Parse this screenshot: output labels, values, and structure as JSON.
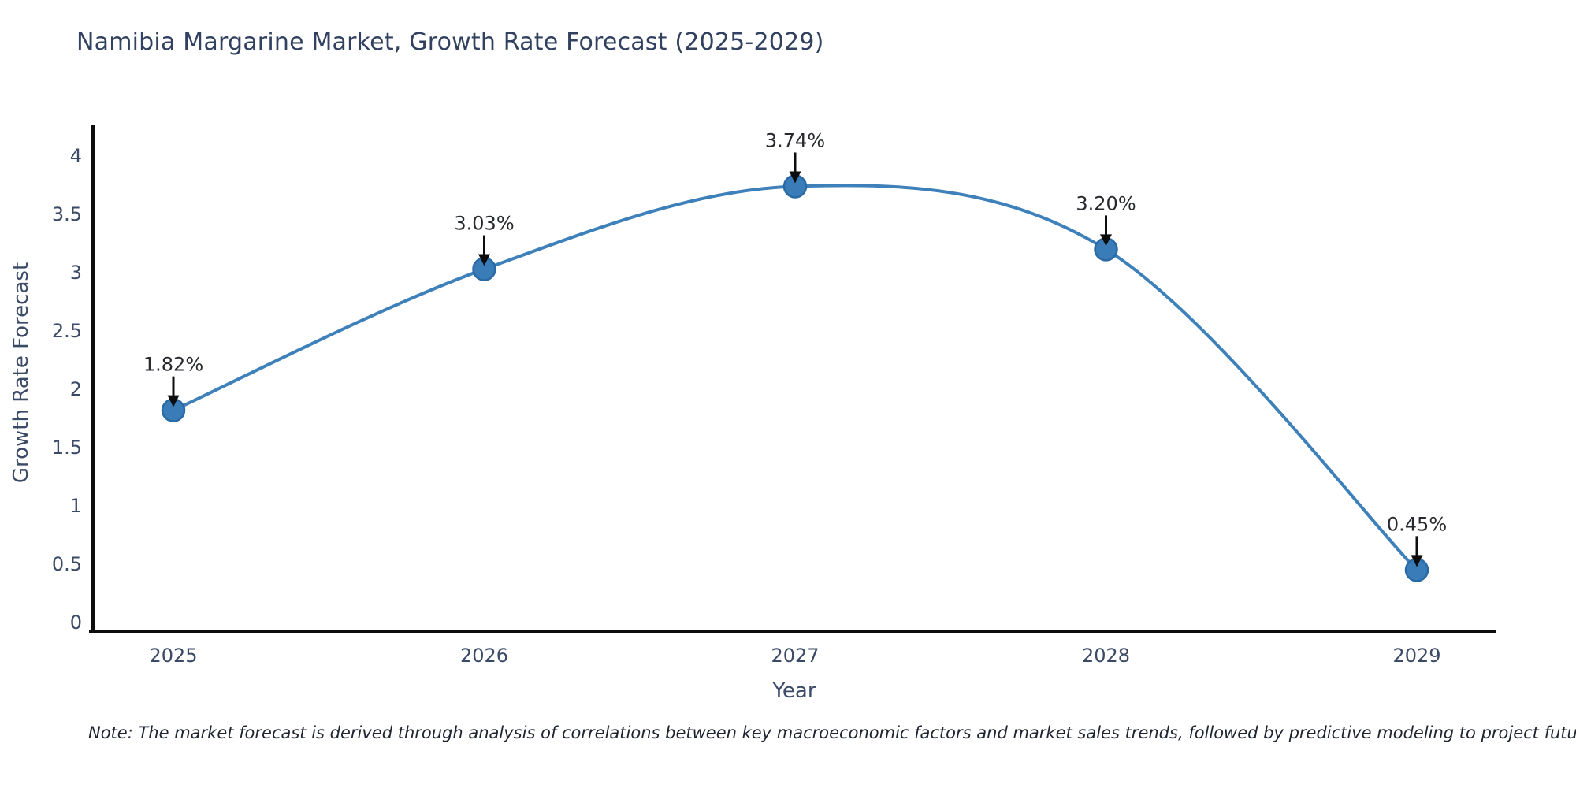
{
  "page": {
    "note": "Note: The market forecast is derived through analysis of correlations between key macroeconomic factors and market sales trends, followed by predictive modeling to project future sales."
  },
  "chart_data": {
    "type": "line",
    "title": "Namibia Margarine Market, Growth Rate Forecast (2025-2029)",
    "xlabel": "Year",
    "ylabel": "Growth Rate Forecast",
    "categories": [
      "2025",
      "2026",
      "2027",
      "2028",
      "2029"
    ],
    "values": [
      1.82,
      3.03,
      3.74,
      3.2,
      0.45
    ],
    "point_labels": [
      "1.82%",
      "3.03%",
      "3.74%",
      "3.20%",
      "0.45%"
    ],
    "ytick_labels": [
      "0",
      "0.5",
      "1",
      "1.5",
      "2",
      "2.5",
      "3",
      "3.5",
      "4"
    ],
    "yticks": [
      0,
      0.5,
      1,
      1.5,
      2,
      2.5,
      3,
      3.5,
      4
    ],
    "ylim": [
      0,
      4.3
    ],
    "grid": false,
    "legend": "none",
    "line_shape": "spline",
    "annotation_style": "value label with downward black arrow above each marker",
    "colors": {
      "line": "#3d80ba",
      "marker_fill": "#3a7cb8",
      "marker_edge": "#2a6aa4",
      "axis": "#0d0d0d",
      "axis_text": "#3b4a66",
      "annotation_text": "#27292f",
      "arrow": "#0d0d0d",
      "background": "#ffffff"
    }
  }
}
